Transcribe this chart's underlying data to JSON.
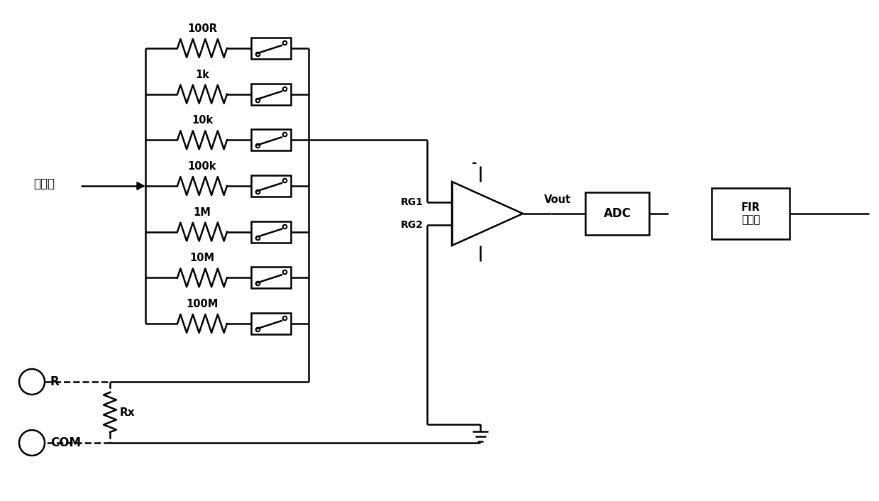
{
  "bg_color": "#ffffff",
  "line_color": "#000000",
  "resistor_labels": [
    "100R",
    "1k",
    "10k",
    "100k",
    "1M",
    "10M",
    "100M"
  ],
  "source_label": "基准源",
  "R_label": "R",
  "Rx_label": "Rx",
  "COM_label": "COM",
  "RG1_label": "RG1",
  "RG2_label": "RG2",
  "Vout_label": "Vout",
  "ADC_label": "ADC",
  "FIR_line1": "FIR",
  "FIR_line2": "滤波器",
  "minus_label": "-",
  "lw": 1.8
}
